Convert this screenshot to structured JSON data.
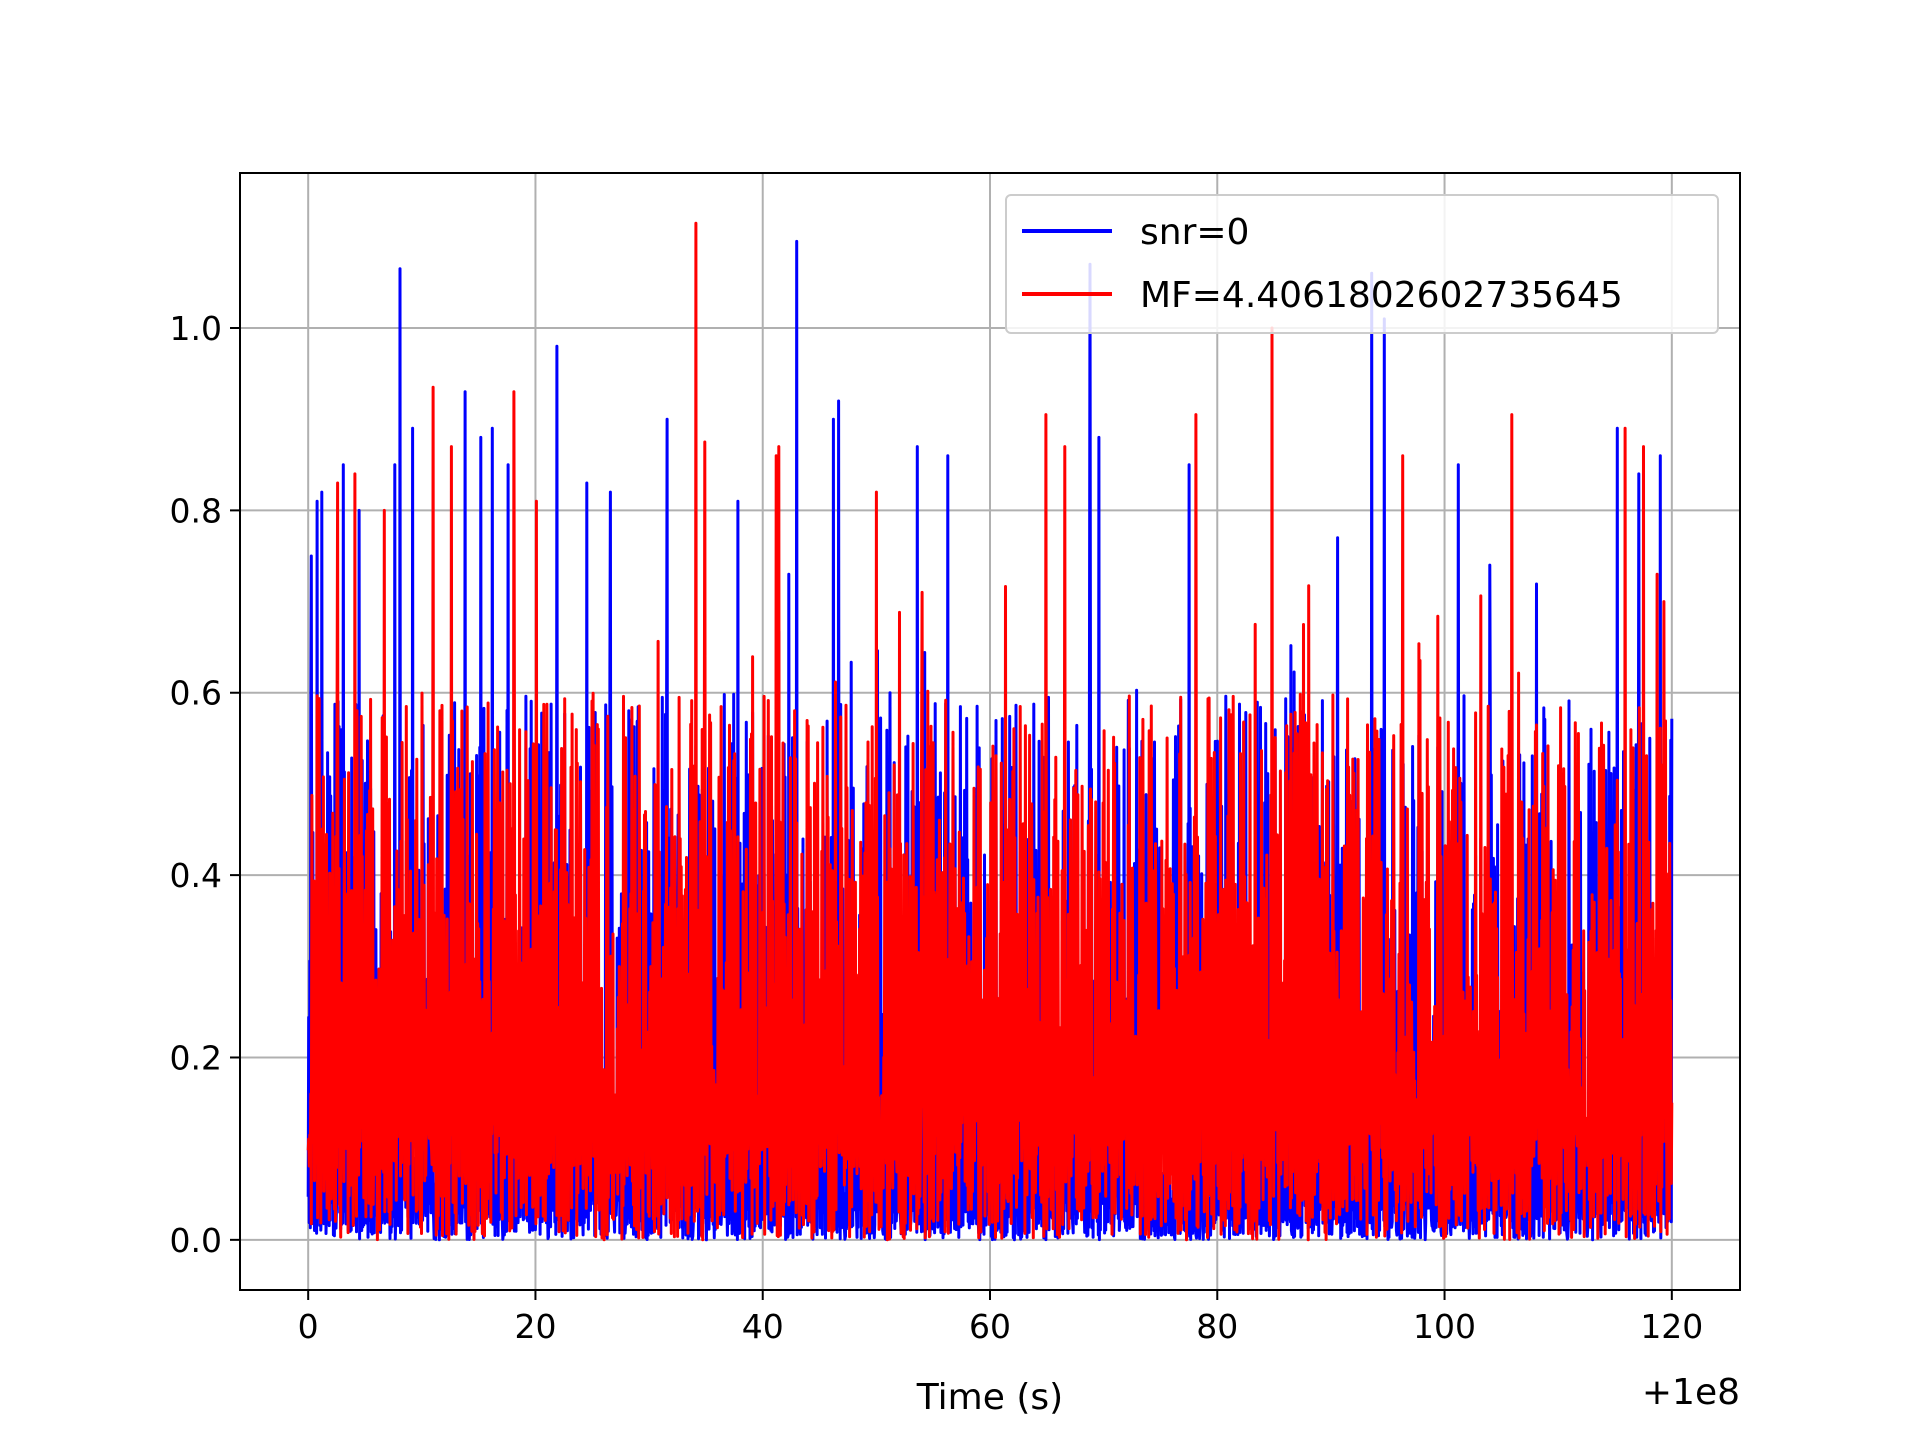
{
  "chart_data": {
    "type": "line",
    "title": "",
    "xlabel": "Time (s)",
    "ylabel": "",
    "x_offset_label": "+1e8",
    "xlim": [
      -6,
      126
    ],
    "ylim": [
      -0.055,
      1.17
    ],
    "xticks": [
      0,
      20,
      40,
      60,
      80,
      100,
      120
    ],
    "xtick_labels": [
      "0",
      "20",
      "40",
      "60",
      "80",
      "100",
      "120"
    ],
    "yticks": [
      0.0,
      0.2,
      0.4,
      0.6,
      0.8,
      1.0
    ],
    "ytick_labels": [
      "0.0",
      "0.2",
      "0.4",
      "0.6",
      "0.8",
      "1.0"
    ],
    "grid": true,
    "legend_position": "top-right",
    "series": [
      {
        "name": "snr=0",
        "color": "#0000ff",
        "x_range": [
          0,
          120
        ],
        "baseline_range": [
          0.0,
          0.05
        ],
        "body_range": [
          0.0,
          0.6
        ],
        "peaks": [
          [
            0.3,
            0.75
          ],
          [
            0.8,
            0.81
          ],
          [
            1.2,
            0.82
          ],
          [
            3.1,
            0.85
          ],
          [
            4.5,
            0.8
          ],
          [
            7.6,
            0.85
          ],
          [
            8.1,
            1.065
          ],
          [
            9.2,
            0.89
          ],
          [
            13.8,
            0.93
          ],
          [
            15.2,
            0.88
          ],
          [
            16.2,
            0.89
          ],
          [
            17.6,
            0.85
          ],
          [
            21.9,
            0.98
          ],
          [
            24.5,
            0.83
          ],
          [
            26.6,
            0.82
          ],
          [
            31.6,
            0.9
          ],
          [
            37.8,
            0.81
          ],
          [
            42.3,
            0.73
          ],
          [
            43.0,
            1.095
          ],
          [
            46.2,
            0.9
          ],
          [
            46.7,
            0.92
          ],
          [
            53.6,
            0.87
          ],
          [
            56.3,
            0.86
          ],
          [
            68.8,
            1.07
          ],
          [
            69.6,
            0.88
          ],
          [
            77.5,
            0.85
          ],
          [
            90.6,
            0.77
          ],
          [
            93.6,
            1.06
          ],
          [
            94.7,
            1.01
          ],
          [
            101.2,
            0.85
          ],
          [
            104.0,
            0.74
          ],
          [
            115.2,
            0.89
          ],
          [
            117.1,
            0.84
          ],
          [
            119.0,
            0.86
          ]
        ]
      },
      {
        "name": "MF=4.4061802602735645",
        "color": "#ff0000",
        "x_range": [
          0,
          120
        ],
        "baseline_range": [
          0.0,
          0.15
        ],
        "body_range": [
          0.1,
          0.6
        ],
        "peaks": [
          [
            2.6,
            0.83
          ],
          [
            4.1,
            0.84
          ],
          [
            6.7,
            0.8
          ],
          [
            11.0,
            0.935
          ],
          [
            12.6,
            0.87
          ],
          [
            18.1,
            0.93
          ],
          [
            20.1,
            0.81
          ],
          [
            34.1,
            1.115
          ],
          [
            34.9,
            0.875
          ],
          [
            41.2,
            0.86
          ],
          [
            41.4,
            0.87
          ],
          [
            50.0,
            0.82
          ],
          [
            54.0,
            0.71
          ],
          [
            64.9,
            0.905
          ],
          [
            66.6,
            0.87
          ],
          [
            78.1,
            0.905
          ],
          [
            84.8,
            1.0
          ],
          [
            96.3,
            0.86
          ],
          [
            105.9,
            0.905
          ],
          [
            115.9,
            0.89
          ],
          [
            117.5,
            0.87
          ],
          [
            118.7,
            0.73
          ],
          [
            119.3,
            0.7
          ]
        ]
      }
    ]
  }
}
